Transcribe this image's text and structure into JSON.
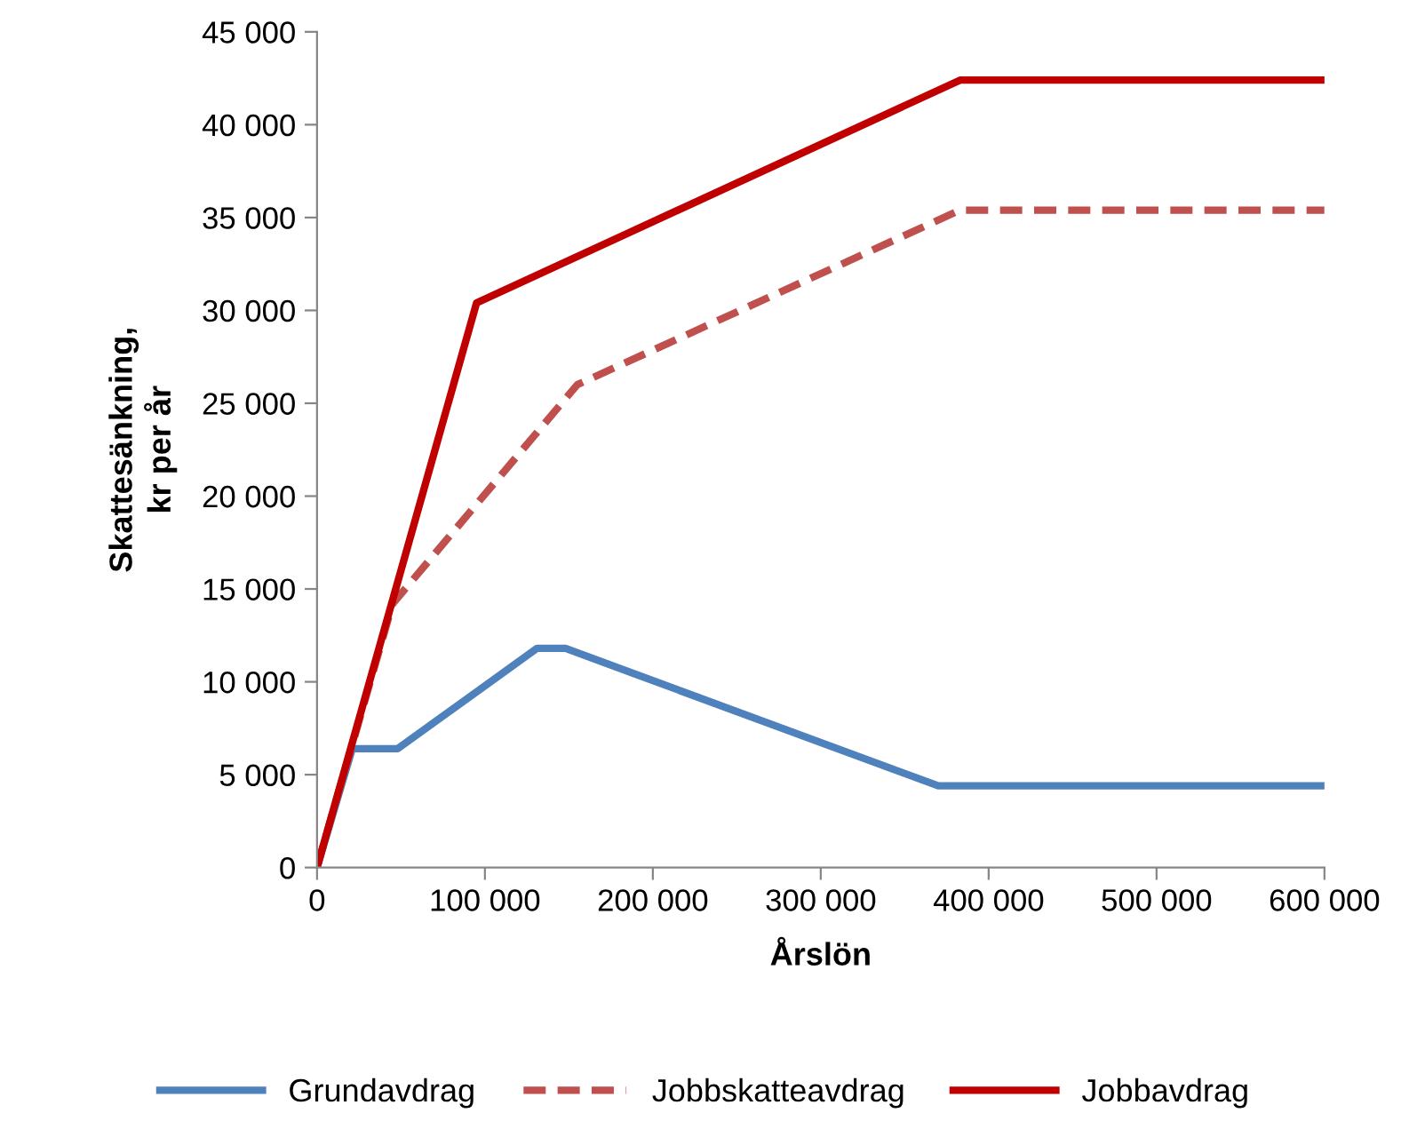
{
  "chart_data": {
    "type": "line",
    "xlabel": "Årslön",
    "ylabel": "Skattesänkning,\nkr per år",
    "series": [
      {
        "name": "Grundavdrag",
        "color": "#4f81bd",
        "line_style": "solid",
        "x": [
          0,
          21000,
          48000,
          131000,
          148000,
          370000,
          600000
        ],
        "values": [
          0,
          6400,
          6400,
          11800,
          11800,
          4400,
          4400
        ]
      },
      {
        "name": "Jobbskatteavdrag",
        "color": "#c0504d",
        "line_style": "dashed",
        "x": [
          0,
          45000,
          155000,
          383000,
          600000
        ],
        "values": [
          0,
          14200,
          26000,
          35400,
          35400
        ]
      },
      {
        "name": "Jobbavdrag",
        "color": "#c00000",
        "line_style": "solid",
        "x": [
          0,
          95000,
          383000,
          600000
        ],
        "values": [
          0,
          30400,
          42400,
          42400
        ]
      }
    ],
    "xlim": [
      0,
      600000
    ],
    "xticks": [
      {
        "value": 0,
        "label": "0"
      },
      {
        "value": 100000,
        "label": "100 000"
      },
      {
        "value": 200000,
        "label": "200 000"
      },
      {
        "value": 300000,
        "label": "300 000"
      },
      {
        "value": 400000,
        "label": "400 000"
      },
      {
        "value": 500000,
        "label": "500 000"
      },
      {
        "value": 600000,
        "label": "600 000"
      }
    ],
    "ylim": [
      0,
      45000
    ],
    "yticks": [
      {
        "value": 0,
        "label": "0"
      },
      {
        "value": 5000,
        "label": "5 000"
      },
      {
        "value": 10000,
        "label": "10 000"
      },
      {
        "value": 15000,
        "label": "15 000"
      },
      {
        "value": 20000,
        "label": "20 000"
      },
      {
        "value": 25000,
        "label": "25 000"
      },
      {
        "value": 30000,
        "label": "30 000"
      },
      {
        "value": 35000,
        "label": "35 000"
      },
      {
        "value": 40000,
        "label": "40 000"
      },
      {
        "value": 45000,
        "label": "45 000"
      }
    ],
    "grid": false,
    "legend": "bottom",
    "marker": "none"
  }
}
